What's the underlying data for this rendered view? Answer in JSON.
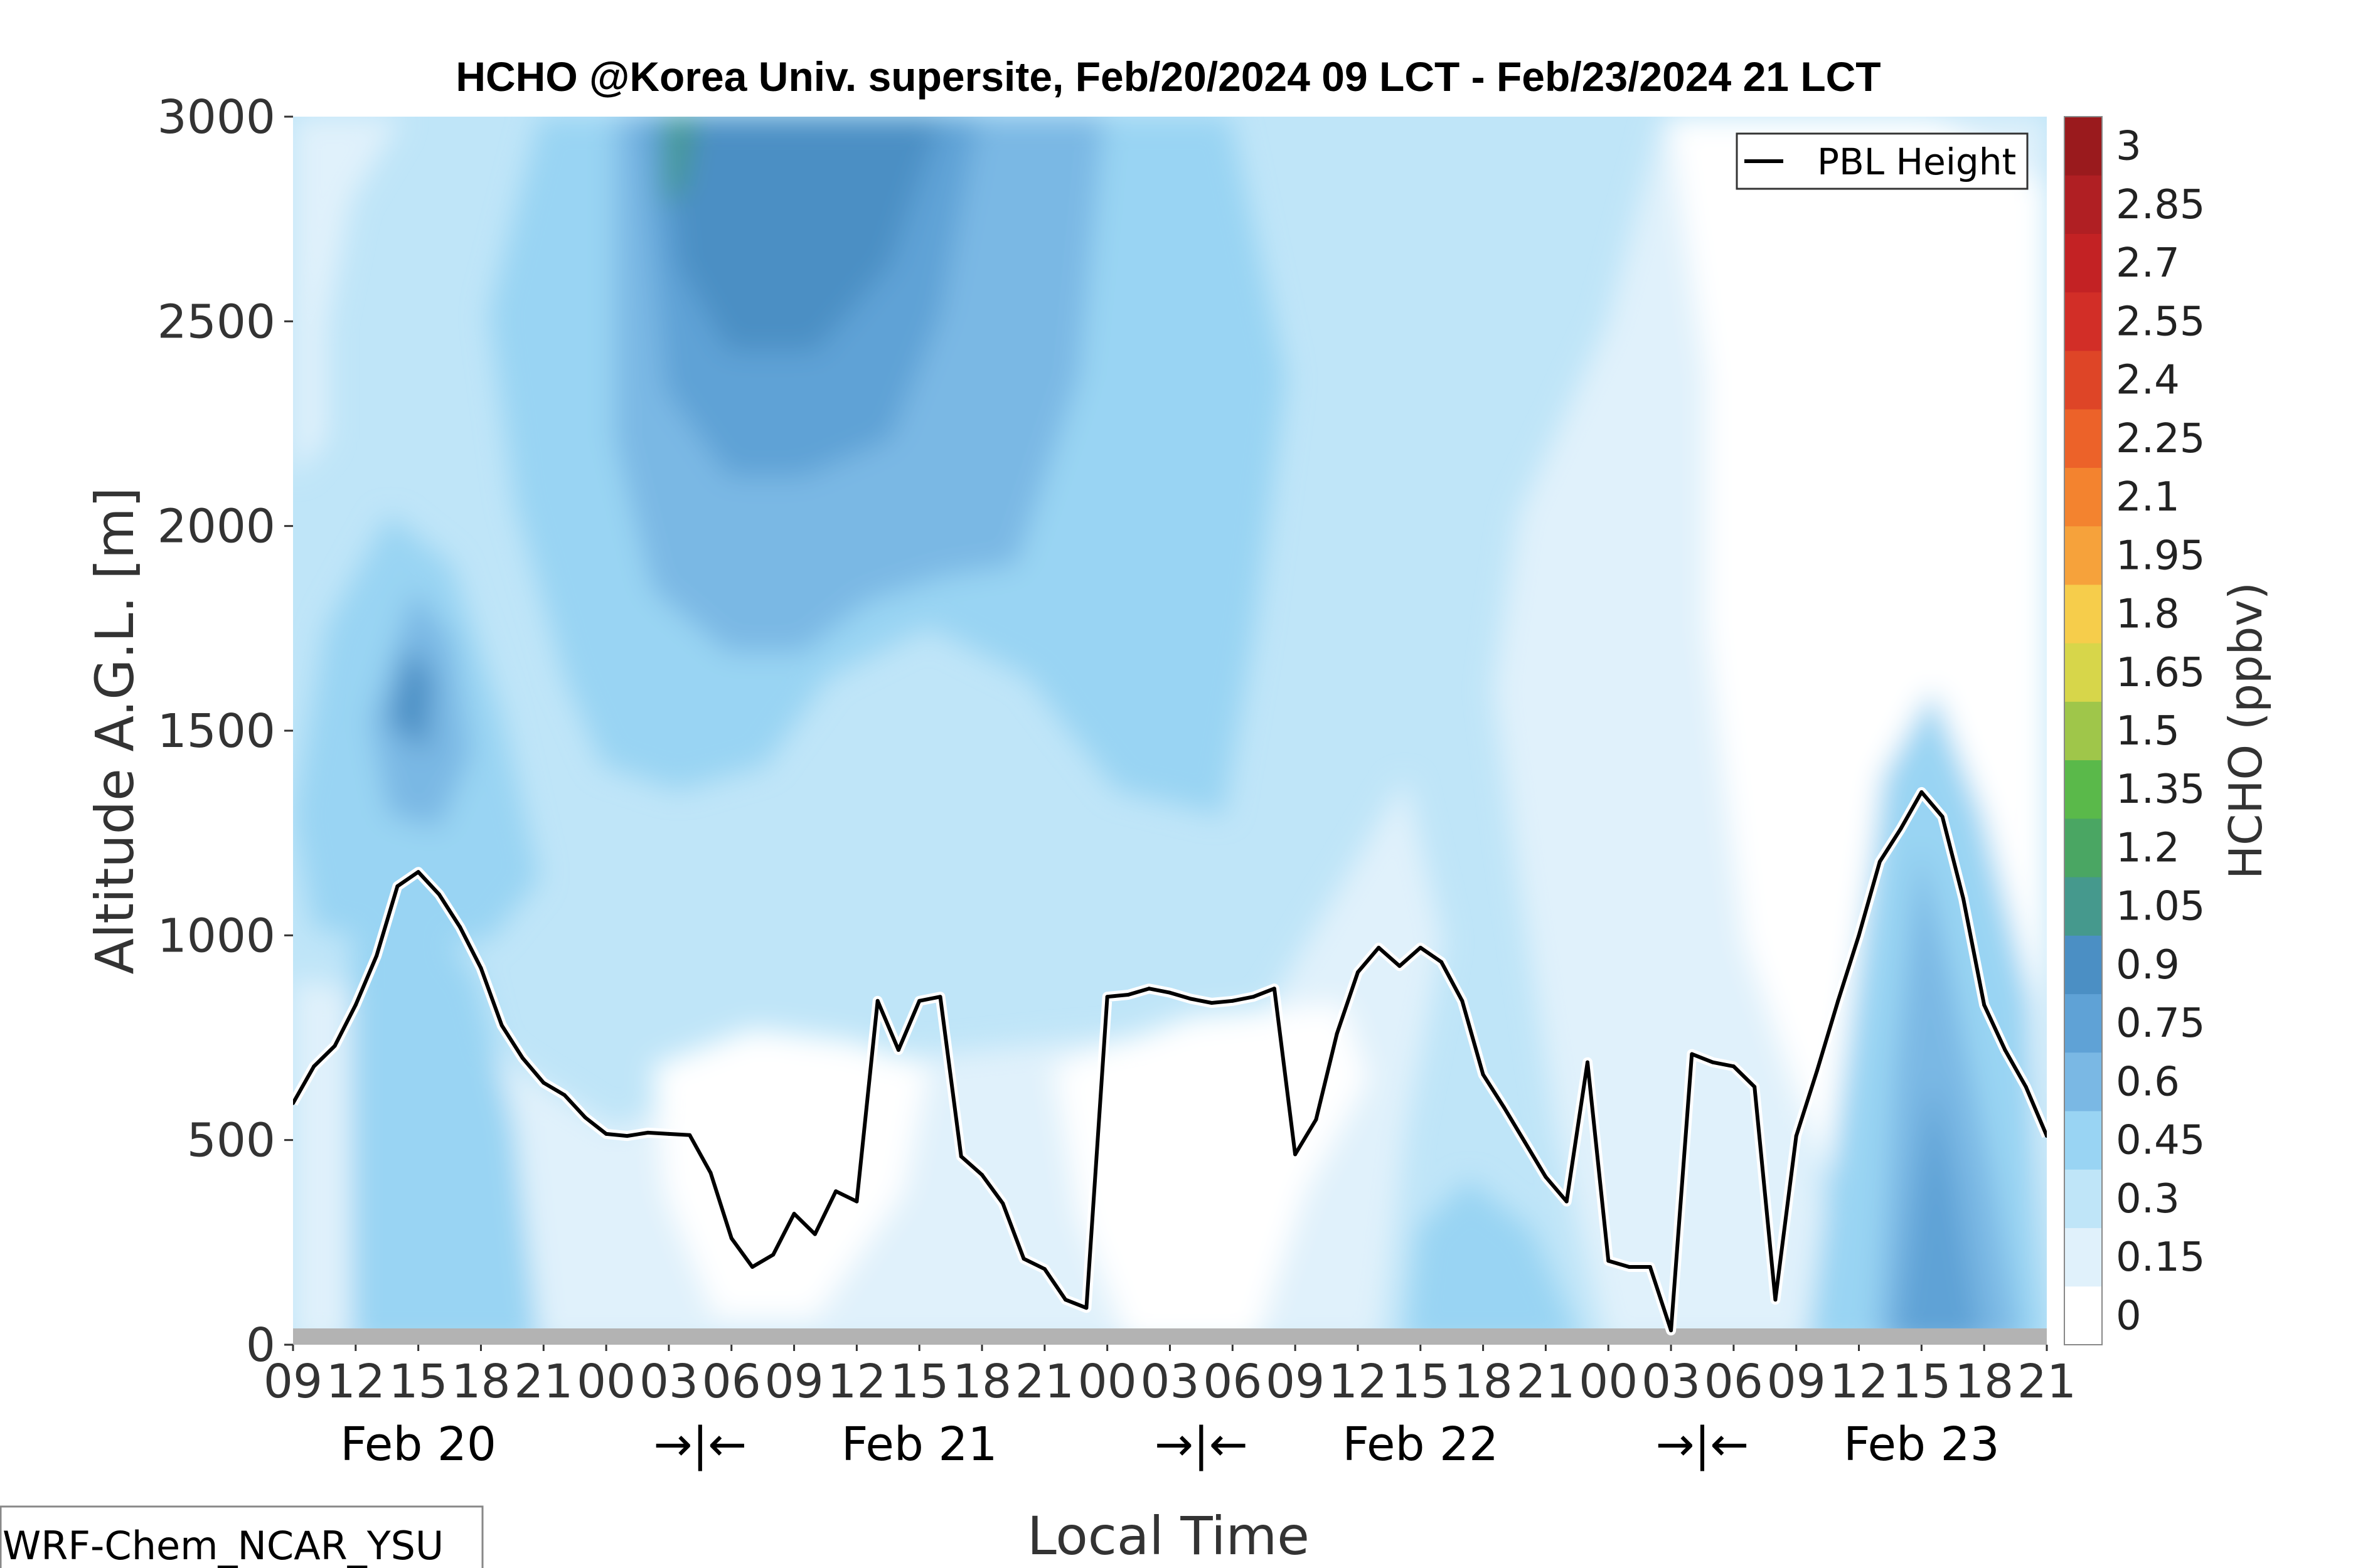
{
  "chart_data": {
    "type": "heatmap",
    "title": "HCHO @Korea Univ. supersite, Feb/20/2024 09 LCT - Feb/23/2024 21 LCT",
    "xlabel": "Local Time",
    "ylabel": "Altitude A.G.L. [m]",
    "ylim": [
      0,
      3000
    ],
    "yticks": [
      "0",
      "500",
      "1000",
      "1500",
      "2000",
      "2500",
      "3000"
    ],
    "xticks": [
      "09",
      "12",
      "15",
      "18",
      "21",
      "00",
      "03",
      "06",
      "09",
      "12",
      "15",
      "18",
      "21",
      "00",
      "03",
      "06",
      "09",
      "12",
      "15",
      "18",
      "21",
      "00",
      "03",
      "06",
      "09",
      "12",
      "15",
      "18",
      "21"
    ],
    "day_labels": [
      {
        "text": "Feb 20",
        "hour": 6
      },
      {
        "text": "→|←",
        "hour": 19.5
      },
      {
        "text": "Feb 21",
        "hour": 30
      },
      {
        "text": "→|←",
        "hour": 43.5
      },
      {
        "text": "Feb 22",
        "hour": 54
      },
      {
        "text": "→|←",
        "hour": 67.5
      },
      {
        "text": "Feb 23",
        "hour": 78
      }
    ],
    "hours_start": 0,
    "hours_end": 84,
    "colorbar": {
      "label": "HCHO (ppbv)",
      "ticks": [
        "0",
        "0.15",
        "0.3",
        "0.45",
        "0.6",
        "0.75",
        "0.9",
        "1.05",
        "1.2",
        "1.35",
        "1.5",
        "1.65",
        "1.8",
        "1.95",
        "2.1",
        "2.25",
        "2.4",
        "2.55",
        "2.7",
        "2.85",
        "3"
      ],
      "colors": [
        "#ffffff",
        "#e0f1fb",
        "#bfe5f8",
        "#99d4f3",
        "#7ab8e4",
        "#5fa2d6",
        "#4b8fc4",
        "#45998d",
        "#4aa663",
        "#5ab94a",
        "#9fc64a",
        "#d7d64a",
        "#f6cd4b",
        "#f6a23b",
        "#f3832f",
        "#ec6229",
        "#de4527",
        "#d22e27",
        "#c32224",
        "#b01f23",
        "#9a1a1d"
      ]
    },
    "surface_band_color": "#b3b3b3",
    "series": [
      {
        "name": "PBL Height",
        "color": "#000000",
        "x": [
          0,
          1,
          2,
          3,
          4,
          5,
          6,
          7,
          8,
          9,
          10,
          11,
          12,
          13,
          14,
          15,
          16,
          17,
          18,
          19,
          20,
          21,
          22,
          23,
          24,
          25,
          26,
          27,
          28,
          29,
          30,
          31,
          32,
          33,
          34,
          35,
          36,
          37,
          38,
          39,
          40,
          41,
          42,
          43,
          44,
          45,
          46,
          47,
          48,
          49,
          50,
          51,
          52,
          53,
          54,
          55,
          56,
          57,
          58,
          59,
          60,
          61,
          62,
          63,
          64,
          65,
          66,
          67,
          68,
          69,
          70,
          71,
          72,
          73,
          74,
          75,
          76,
          77,
          78,
          79,
          80,
          81,
          82,
          83,
          84
        ],
        "values": [
          590,
          680,
          730,
          830,
          950,
          1120,
          1155,
          1100,
          1020,
          920,
          780,
          700,
          640,
          610,
          555,
          515,
          510,
          518,
          515,
          512,
          420,
          260,
          190,
          220,
          320,
          270,
          375,
          350,
          840,
          720,
          840,
          850,
          460,
          415,
          345,
          210,
          185,
          110,
          90,
          850,
          855,
          870,
          860,
          845,
          835,
          840,
          850,
          870,
          465,
          550,
          760,
          910,
          970,
          925,
          970,
          935,
          840,
          660,
          580,
          495,
          410,
          350,
          690,
          205,
          190,
          190,
          35,
          710,
          690,
          680,
          630,
          110,
          510,
          670,
          840,
          1000,
          1180,
          1260,
          1350,
          1290,
          1090,
          830,
          720,
          630,
          510
        ]
      }
    ],
    "legend": {
      "entries": [
        "PBL Height"
      ],
      "placement": "top-right"
    },
    "annotation": "WRF-Chem_NCAR_YSU",
    "grid": false
  }
}
